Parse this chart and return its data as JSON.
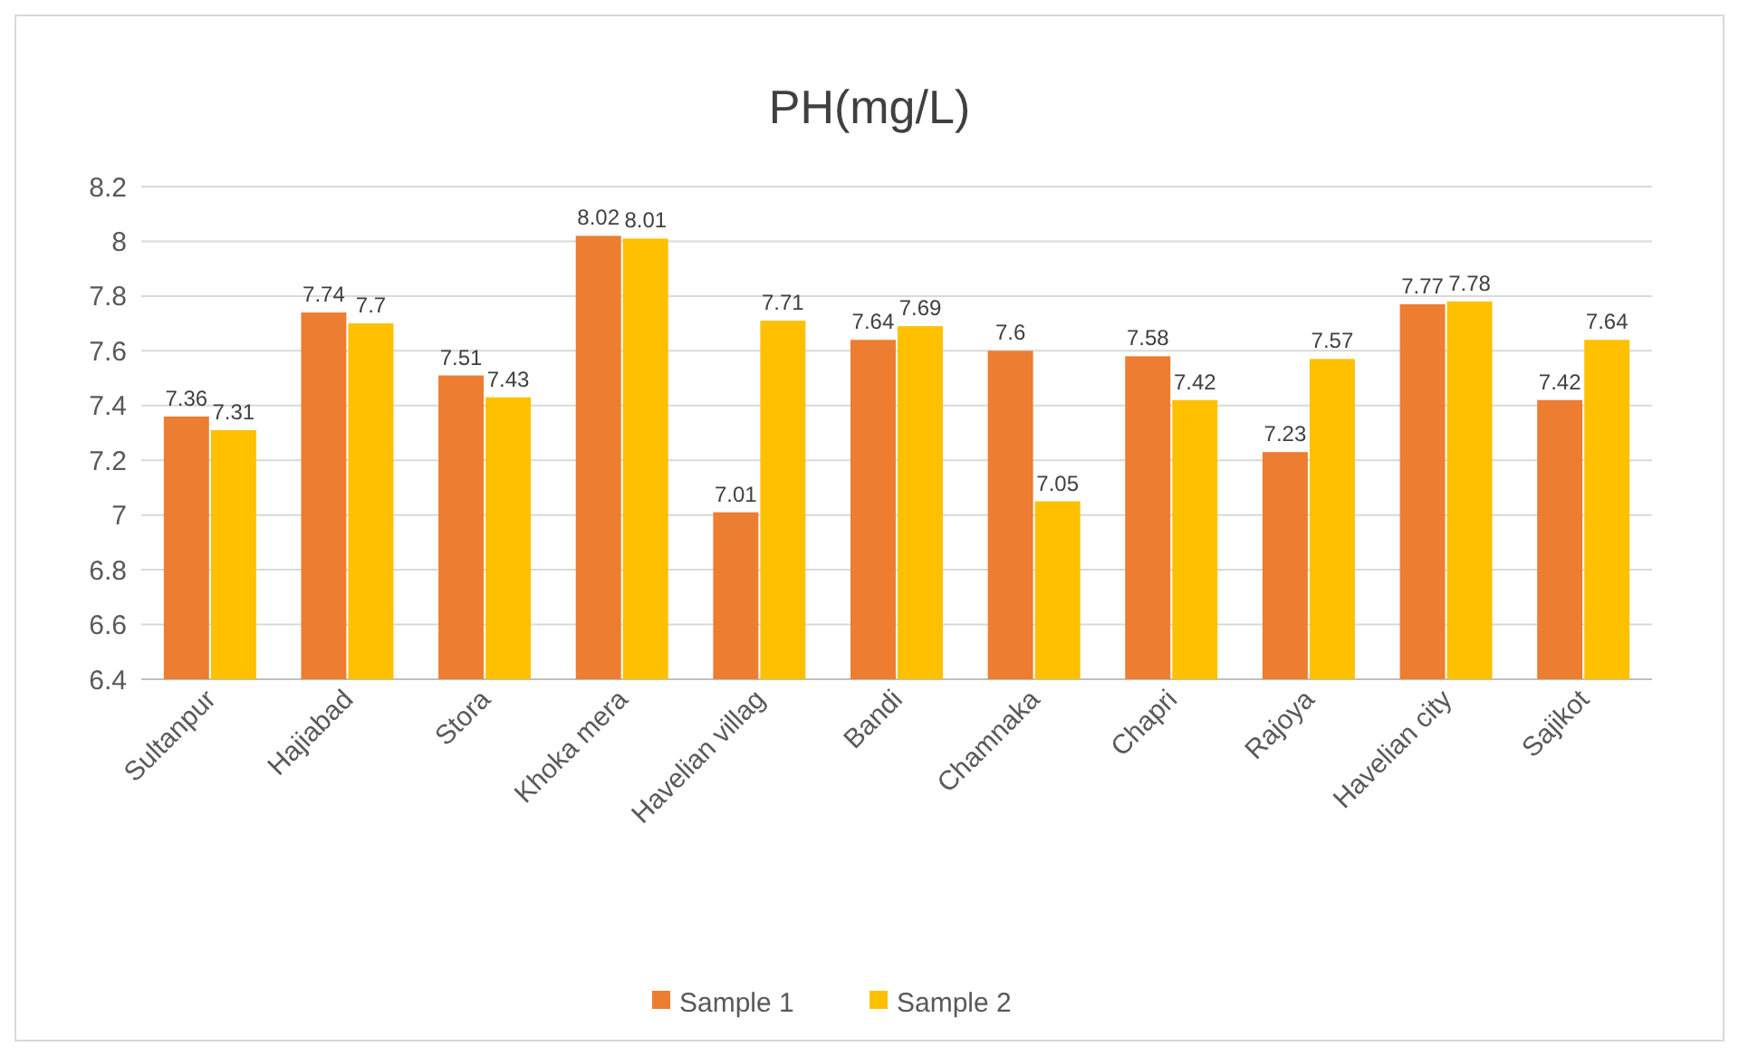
{
  "chart_data": {
    "type": "bar",
    "title": "PH(mg/L)",
    "categories": [
      "Sultanpur",
      "Hajiabad",
      "Stora",
      "Khoka mera",
      "Havelian villag",
      "Bandi",
      "Chamnaka",
      "Chapri",
      "Rajoya",
      "Havelian city",
      "Sajikot"
    ],
    "series": [
      {
        "name": "Sample 1",
        "color": "#ed7d31",
        "values": [
          7.36,
          7.74,
          7.51,
          8.02,
          7.01,
          7.64,
          7.6,
          7.58,
          7.23,
          7.77,
          7.42
        ]
      },
      {
        "name": "Sample 2",
        "color": "#ffc000",
        "values": [
          7.31,
          7.7,
          7.43,
          8.01,
          7.71,
          7.69,
          7.05,
          7.42,
          7.57,
          7.78,
          7.64
        ]
      }
    ],
    "ylim": [
      6.4,
      8.2
    ],
    "yticks": [
      6.4,
      6.6,
      6.8,
      7,
      7.2,
      7.4,
      7.6,
      7.8,
      8,
      8.2
    ],
    "grid": "y",
    "legend": "bottom",
    "data_labels": true
  }
}
